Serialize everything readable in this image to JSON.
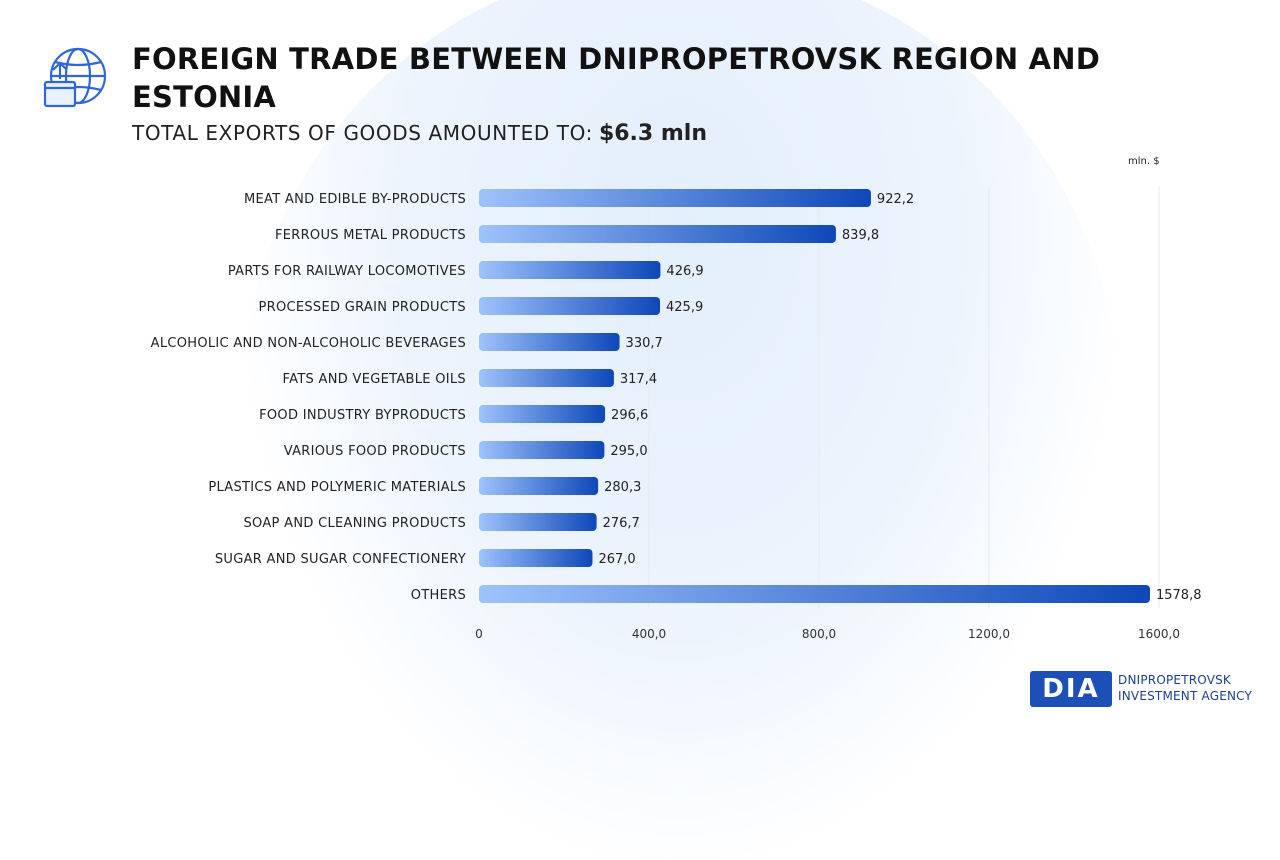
{
  "header": {
    "title": "FOREIGN TRADE BETWEEN DNIPROPETROVSK REGION AND ESTONIA",
    "subtitle_label": "TOTAL EXPORTS OF GOODS AMOUNTED TO:",
    "subtitle_value": "$6.3 mln",
    "icon": "globe-export-box-icon"
  },
  "unit_label": "mln. $",
  "logo": {
    "badge_text": "DIA",
    "line1": "DNIPROPETROVSK",
    "line2": "INVESTMENT AGENCY"
  },
  "colors": {
    "bar_start": "#9ec3fb",
    "bar_end": "#0e47b8",
    "accent": "#1d4fb8",
    "grid": "#e6e9ee"
  },
  "chart_data": {
    "type": "bar",
    "orientation": "horizontal",
    "categories": [
      "MEAT AND EDIBLE BY-PRODUCTS",
      "FERROUS METAL PRODUCTS",
      "PARTS FOR RAILWAY LOCOMOTIVES",
      "PROCESSED GRAIN PRODUCTS",
      "ALCOHOLIC AND NON-ALCOHOLIC BEVERAGES",
      "FATS AND VEGETABLE OILS",
      "FOOD INDUSTRY BYPRODUCTS",
      "VARIOUS FOOD PRODUCTS",
      "PLASTICS AND POLYMERIC MATERIALS",
      "SOAP AND CLEANING PRODUCTS",
      "SUGAR AND SUGAR CONFECTIONERY",
      "OTHERS"
    ],
    "values": [
      922.2,
      839.8,
      426.9,
      425.9,
      330.7,
      317.4,
      296.6,
      295.0,
      280.3,
      276.7,
      267.0,
      1578.8
    ],
    "value_labels": [
      "922,2",
      "839,8",
      "426,9",
      "425,9",
      "330,7",
      "317,4",
      "296,6",
      "295,0",
      "280,3",
      "276,7",
      "267,0",
      "1578,8"
    ],
    "xlim": [
      0,
      1600
    ],
    "x_ticks": [
      0,
      400,
      800,
      1200,
      1600
    ],
    "x_tick_labels": [
      "0",
      "400,0",
      "800,0",
      "1200,0",
      "1600,0"
    ],
    "grid": true,
    "legend": "none"
  }
}
